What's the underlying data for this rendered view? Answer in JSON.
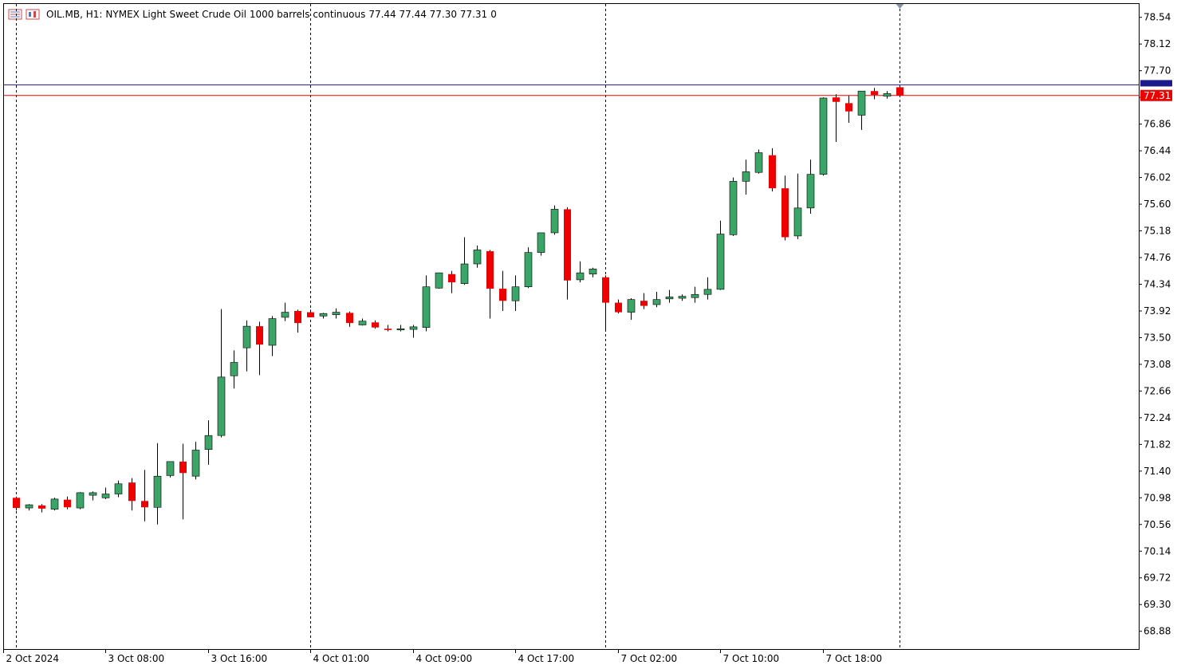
{
  "header": {
    "symbol": "OIL.MB, H1:",
    "description": "NYMEX Light Sweet Crude Oil 1000 barrels continuous",
    "ohlc": "77.44 77.44 77.30 77.31",
    "volume": "0"
  },
  "icons": [
    "list-icon",
    "chart-window-icon"
  ],
  "colors": {
    "bull": "#3aa566",
    "bear": "#ef0000",
    "background": "#ffffff",
    "grid": "#000000",
    "bid_line": "#1a1a8c",
    "ask_line": "#ef0000"
  },
  "chart_data": {
    "type": "candlestick",
    "timeframe": "H1",
    "ylim": [
      68.6,
      78.75
    ],
    "yticks": [
      "78.54",
      "78.12",
      "77.70",
      "77.28",
      "76.86",
      "76.44",
      "76.02",
      "75.60",
      "75.18",
      "74.76",
      "74.34",
      "73.92",
      "73.50",
      "73.08",
      "72.66",
      "72.24",
      "71.82",
      "71.40",
      "70.98",
      "70.56",
      "70.14",
      "69.72",
      "69.30",
      "68.88"
    ],
    "xticks": [
      "2 Oct 2024",
      "3 Oct 08:00",
      "3 Oct 16:00",
      "4 Oct 01:00",
      "4 Oct 09:00",
      "4 Oct 17:00",
      "7 Oct 02:00",
      "7 Oct 10:00",
      "7 Oct 18:00"
    ],
    "day_separators_after_bar": [
      0,
      23,
      46
    ],
    "current_price": "77.31",
    "candles": [
      [
        70.98,
        71.0,
        70.78,
        70.82
      ],
      [
        70.82,
        70.88,
        70.78,
        70.87
      ],
      [
        70.86,
        70.88,
        70.75,
        70.81
      ],
      [
        70.8,
        70.98,
        70.78,
        70.96
      ],
      [
        70.95,
        71.0,
        70.8,
        70.83
      ],
      [
        70.82,
        71.07,
        70.8,
        71.06
      ],
      [
        71.02,
        71.08,
        70.94,
        71.06
      ],
      [
        70.98,
        71.14,
        70.96,
        71.04
      ],
      [
        71.04,
        71.25,
        70.99,
        71.2
      ],
      [
        71.22,
        71.29,
        70.78,
        70.93
      ],
      [
        70.93,
        71.42,
        70.61,
        70.83
      ],
      [
        70.83,
        71.84,
        70.56,
        71.32
      ],
      [
        71.33,
        71.55,
        71.3,
        71.55
      ],
      [
        71.55,
        71.83,
        70.64,
        71.37
      ],
      [
        71.32,
        71.86,
        71.27,
        71.73
      ],
      [
        71.74,
        72.2,
        71.5,
        71.96
      ],
      [
        71.96,
        73.95,
        71.93,
        72.88
      ],
      [
        72.9,
        73.3,
        72.7,
        73.11
      ],
      [
        73.34,
        73.77,
        72.97,
        73.68
      ],
      [
        73.68,
        73.75,
        72.91,
        73.39
      ],
      [
        73.38,
        73.84,
        73.21,
        73.8
      ],
      [
        73.82,
        74.05,
        73.76,
        73.9
      ],
      [
        73.92,
        73.94,
        73.58,
        73.73
      ],
      [
        73.9,
        73.94,
        73.82,
        73.82
      ],
      [
        73.84,
        73.89,
        73.8,
        73.88
      ],
      [
        73.86,
        73.96,
        73.8,
        73.9
      ],
      [
        73.89,
        73.91,
        73.67,
        73.73
      ],
      [
        73.7,
        73.8,
        73.69,
        73.76
      ],
      [
        73.74,
        73.77,
        73.64,
        73.66
      ],
      [
        73.64,
        73.7,
        73.6,
        73.62
      ],
      [
        73.64,
        73.7,
        73.6,
        73.64
      ],
      [
        73.63,
        73.7,
        73.5,
        73.67
      ],
      [
        73.66,
        74.48,
        73.6,
        74.3
      ],
      [
        74.28,
        74.52,
        74.27,
        74.52
      ],
      [
        74.5,
        74.55,
        74.2,
        74.37
      ],
      [
        74.35,
        75.08,
        74.33,
        74.66
      ],
      [
        74.66,
        74.95,
        74.6,
        74.88
      ],
      [
        74.86,
        74.88,
        73.8,
        74.27
      ],
      [
        74.27,
        74.55,
        73.92,
        74.08
      ],
      [
        74.08,
        74.48,
        73.92,
        74.3
      ],
      [
        74.3,
        74.92,
        74.28,
        74.84
      ],
      [
        74.84,
        75.15,
        74.79,
        75.15
      ],
      [
        75.15,
        75.58,
        75.12,
        75.52
      ],
      [
        75.52,
        75.55,
        74.1,
        74.4
      ],
      [
        74.41,
        74.7,
        74.37,
        74.52
      ],
      [
        74.5,
        74.6,
        74.45,
        74.58
      ],
      [
        74.45,
        74.48,
        73.6,
        74.05
      ],
      [
        74.05,
        74.1,
        73.88,
        73.9
      ],
      [
        73.9,
        74.12,
        73.78,
        74.1
      ],
      [
        74.08,
        74.2,
        73.95,
        74.0
      ],
      [
        74.02,
        74.22,
        73.98,
        74.1
      ],
      [
        74.11,
        74.25,
        74.05,
        74.14
      ],
      [
        74.12,
        74.18,
        74.08,
        74.15
      ],
      [
        74.13,
        74.3,
        74.05,
        74.18
      ],
      [
        74.18,
        74.45,
        74.1,
        74.26
      ],
      [
        74.26,
        75.34,
        74.25,
        75.13
      ],
      [
        75.12,
        76.02,
        75.1,
        75.96
      ],
      [
        75.96,
        76.3,
        75.75,
        76.11
      ],
      [
        76.1,
        76.46,
        76.08,
        76.41
      ],
      [
        76.37,
        76.48,
        75.8,
        75.85
      ],
      [
        75.85,
        76.05,
        75.03,
        75.08
      ],
      [
        75.1,
        76.08,
        75.05,
        75.54
      ],
      [
        75.54,
        76.3,
        75.45,
        76.07
      ],
      [
        76.07,
        77.28,
        76.05,
        77.27
      ],
      [
        77.28,
        77.33,
        76.58,
        77.21
      ],
      [
        77.19,
        77.31,
        76.88,
        77.06
      ],
      [
        77.0,
        77.38,
        76.77,
        77.38
      ],
      [
        77.38,
        77.43,
        77.25,
        77.32
      ],
      [
        77.3,
        77.38,
        77.26,
        77.34
      ],
      [
        77.44,
        77.44,
        77.3,
        77.31
      ]
    ]
  }
}
